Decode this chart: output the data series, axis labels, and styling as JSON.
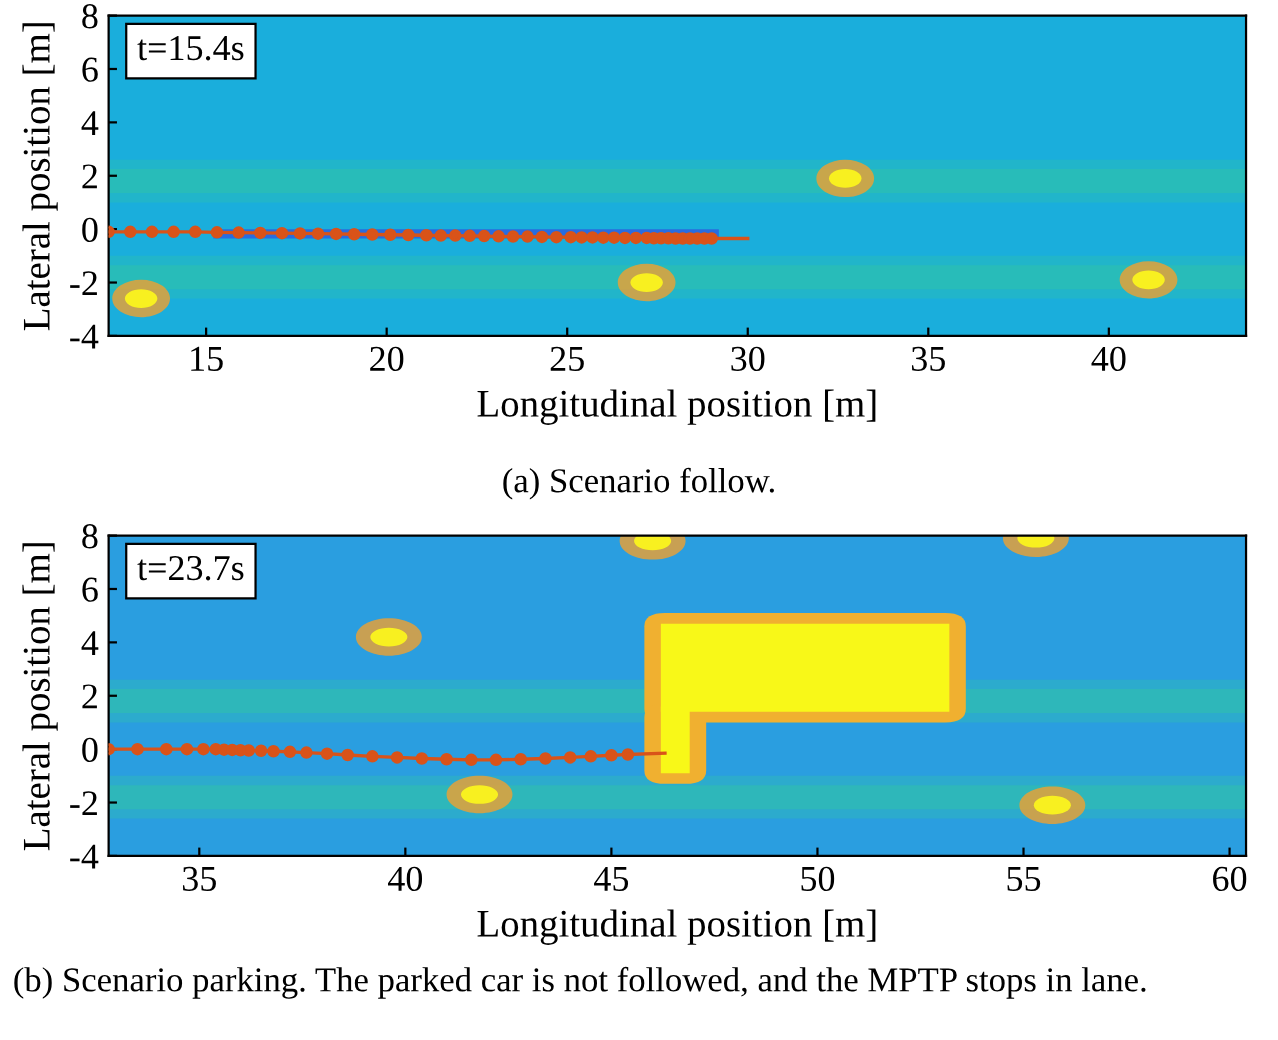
{
  "chart_data": [
    {
      "type": "line",
      "xlabel": "Longitudinal position [m]",
      "ylabel": "Lateral position [m]",
      "xlim": [
        12.3,
        43.8
      ],
      "ylim": [
        -4,
        8
      ],
      "xticks": [
        15,
        20,
        25,
        30,
        35,
        40
      ],
      "yticks": [
        -4,
        -2,
        0,
        2,
        4,
        6,
        8
      ],
      "grid": false,
      "legend": false,
      "annotations": [
        "t=15.4s",
        "(a) Scenario follow."
      ],
      "series": [
        {
          "color": "#d95319",
          "marker": "circle",
          "x": [
            12.3,
            12.9,
            13.5,
            14.1,
            14.7,
            15.3,
            15.9,
            16.5,
            17.1,
            17.6,
            18.1,
            18.6,
            19.1,
            19.6,
            20.1,
            20.6,
            21.1,
            21.5,
            21.9,
            22.3,
            22.7,
            23.1,
            23.5,
            23.9,
            24.3,
            24.7,
            25.1,
            25.4,
            25.7,
            26.0,
            26.3,
            26.6,
            26.9,
            27.2,
            27.4,
            27.6,
            27.8,
            28.0,
            28.2,
            28.4,
            28.6,
            28.8,
            29.0
          ],
          "values": [
            -0.1,
            -0.1,
            -0.1,
            -0.1,
            -0.1,
            -0.12,
            -0.13,
            -0.14,
            -0.15,
            -0.16,
            -0.17,
            -0.18,
            -0.19,
            -0.2,
            -0.21,
            -0.22,
            -0.23,
            -0.24,
            -0.24,
            -0.25,
            -0.26,
            -0.27,
            -0.28,
            -0.28,
            -0.29,
            -0.3,
            -0.3,
            -0.31,
            -0.31,
            -0.32,
            -0.32,
            -0.33,
            -0.33,
            -0.33,
            -0.34,
            -0.34,
            -0.34,
            -0.35,
            -0.35,
            -0.35,
            -0.35,
            -0.35,
            -0.35
          ]
        },
        {
          "color": "#d95319",
          "marker": "none",
          "x": [
            29.0,
            30.0
          ],
          "values": [
            -0.35,
            -0.35
          ]
        }
      ]
    },
    {
      "type": "line",
      "xlabel": "Longitudinal position [m]",
      "ylabel": "Lateral position [m]",
      "xlim": [
        32.8,
        60.4
      ],
      "ylim": [
        -4,
        8
      ],
      "xticks": [
        35,
        40,
        45,
        50,
        55,
        60
      ],
      "yticks": [
        -4,
        -2,
        0,
        2,
        4,
        6,
        8
      ],
      "grid": false,
      "legend": false,
      "annotations": [
        "t=23.7s",
        "(b) Scenario parking. The parked car is not followed, and the MPTP stops in lane."
      ],
      "series": [
        {
          "color": "#d95319",
          "marker": "circle",
          "x": [
            32.8,
            33.5,
            34.2,
            34.7,
            35.1,
            35.4,
            35.6,
            35.8,
            36.0,
            36.2,
            36.5,
            36.8,
            37.2,
            37.6,
            38.1,
            38.6,
            39.2,
            39.8,
            40.4,
            41.0,
            41.6,
            42.2,
            42.8,
            43.4,
            44.0,
            44.5,
            45.0,
            45.4
          ],
          "values": [
            0.0,
            0.0,
            0.0,
            0.0,
            0.0,
            0.0,
            -0.02,
            -0.03,
            -0.04,
            -0.05,
            -0.06,
            -0.08,
            -0.1,
            -0.13,
            -0.17,
            -0.22,
            -0.27,
            -0.31,
            -0.35,
            -0.38,
            -0.4,
            -0.4,
            -0.38,
            -0.35,
            -0.31,
            -0.27,
            -0.23,
            -0.2
          ]
        },
        {
          "color": "#d95319",
          "marker": "none",
          "x": [
            45.4,
            46.3
          ],
          "values": [
            -0.2,
            -0.15
          ]
        }
      ]
    }
  ]
}
